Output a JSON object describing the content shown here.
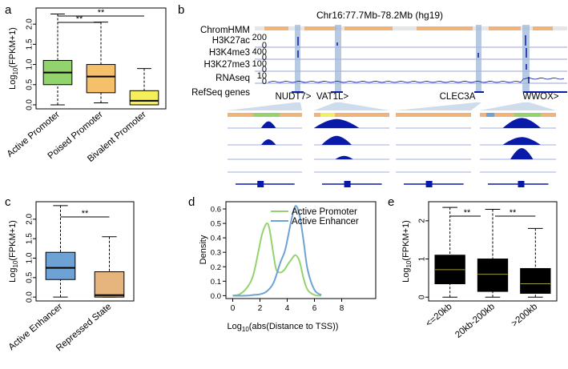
{
  "panels": {
    "a": "a",
    "b": "b",
    "c": "c",
    "d": "d",
    "e": "e"
  },
  "colors": {
    "active": "#92d36e",
    "poised": "#f6bf6a",
    "bivalent": "#f4ef5a",
    "enhancer": "#6ea2d4",
    "repressed": "#e6b57d",
    "track": "#0a1aa8",
    "highlight": "#9fb8d8",
    "chrom_orange": "#f0b47a"
  },
  "chart_data": [
    {
      "panel": "a",
      "type": "box",
      "categories": [
        "Active Promoter",
        "Poised Promoter",
        "Bivalent Promoter"
      ],
      "ylabel": "Log10(FPKM+1)",
      "ylim": [
        -0.1,
        2.4
      ],
      "yticks": [
        0.0,
        0.5,
        1.0,
        1.5,
        2.0
      ],
      "yticklabels": [
        "0.0",
        "0.5",
        "1.0",
        "1.5",
        "2.0"
      ],
      "boxes": [
        {
          "min": 0.0,
          "q1": 0.5,
          "median": 0.8,
          "q3": 1.1,
          "max": 2.25,
          "color": "#92d36e"
        },
        {
          "min": 0.05,
          "q1": 0.3,
          "median": 0.7,
          "q3": 1.0,
          "max": 2.05,
          "color": "#f6bf6a"
        },
        {
          "min": 0.0,
          "q1": 0.0,
          "median": 0.1,
          "q3": 0.35,
          "max": 0.9,
          "color": "#f4ef5a"
        }
      ],
      "significance": [
        {
          "from": 0,
          "to": 1,
          "label": "**"
        },
        {
          "from": 0,
          "to": 2,
          "label": "**"
        }
      ]
    },
    {
      "panel": "b",
      "type": "genome-tracks",
      "title": "Chr16:77.7Mb-78.2Mb (hg19)",
      "tracks": [
        {
          "label": "ChromHMM",
          "scale": ""
        },
        {
          "label": "H3K27ac",
          "scale": "200"
        },
        {
          "label": "H3K4me3",
          "scale": "400"
        },
        {
          "label": "H3K27me3",
          "scale": "100"
        },
        {
          "label": "RNAseq",
          "scale": "10"
        },
        {
          "label": "RefSeq genes",
          "scale": ""
        }
      ],
      "tick0": "0",
      "genes": [
        "NUDT7>",
        "VAT1L>",
        "CLEC3A",
        "WWOX>"
      ]
    },
    {
      "panel": "c",
      "type": "box",
      "categories": [
        "Active Enhancer",
        "Repressed State"
      ],
      "ylabel": "Log10(FPKM+1)",
      "ylim": [
        -0.1,
        2.45
      ],
      "yticks": [
        0.0,
        0.5,
        1.0,
        1.5,
        2.0
      ],
      "yticklabels": [
        "0.0",
        "0.5",
        "1.0",
        "1.5",
        "2.0"
      ],
      "boxes": [
        {
          "min": 0.0,
          "q1": 0.45,
          "median": 0.75,
          "q3": 1.15,
          "max": 2.35,
          "color": "#6ea2d4"
        },
        {
          "min": 0.0,
          "q1": 0.0,
          "median": 0.05,
          "q3": 0.65,
          "max": 1.55,
          "color": "#e6b57d"
        }
      ],
      "significance": [
        {
          "from": 0,
          "to": 1,
          "label": "**"
        }
      ]
    },
    {
      "panel": "d",
      "type": "line",
      "xlabel": "Log10(abs(Distance to TSS))",
      "ylabel": "Density",
      "xlim": [
        -0.5,
        10.5
      ],
      "ylim": [
        -0.02,
        0.65
      ],
      "xticks": [
        0,
        2,
        4,
        6,
        8
      ],
      "yticks": [
        0.0,
        0.1,
        0.2,
        0.3,
        0.4,
        0.5,
        0.6
      ],
      "yticklabels": [
        "0.0",
        "0.1",
        "0.2",
        "0.3",
        "0.4",
        "0.5",
        "0.6"
      ],
      "legend": "top-right",
      "series": [
        {
          "name": "Active Promoter",
          "color": "#92d36e",
          "x": [
            0,
            0.5,
            1,
            1.5,
            2,
            2.2,
            2.5,
            2.7,
            3,
            3.2,
            3.5,
            3.8,
            4,
            4.3,
            4.6,
            4.9,
            5.2,
            5.5,
            6,
            6.5
          ],
          "y": [
            0,
            0.01,
            0.05,
            0.14,
            0.36,
            0.44,
            0.5,
            0.46,
            0.28,
            0.18,
            0.16,
            0.18,
            0.21,
            0.25,
            0.28,
            0.24,
            0.12,
            0.04,
            0.005,
            0
          ]
        },
        {
          "name": "Active Enhancer",
          "color": "#6ea2d4",
          "x": [
            0,
            1,
            1.5,
            2,
            2.5,
            3,
            3.5,
            3.8,
            4,
            4.3,
            4.6,
            4.9,
            5.2,
            5.5,
            6,
            6.5
          ],
          "y": [
            0,
            0.0,
            0.005,
            0.01,
            0.03,
            0.09,
            0.23,
            0.3,
            0.38,
            0.52,
            0.62,
            0.56,
            0.38,
            0.18,
            0.04,
            0.005
          ]
        }
      ]
    },
    {
      "panel": "e",
      "type": "box",
      "categories": [
        "<=20kb",
        "20kb-200kb",
        ">200kb"
      ],
      "ylabel": "Log10(FPKM+1)",
      "ylim": [
        -0.1,
        2.5
      ],
      "yticks": [
        0,
        1,
        2
      ],
      "yticklabels": [
        "0",
        "1",
        "2"
      ],
      "boxes": [
        {
          "min": 0.0,
          "q1": 0.35,
          "median": 0.72,
          "q3": 1.1,
          "max": 2.35,
          "color": "#000000"
        },
        {
          "min": 0.0,
          "q1": 0.15,
          "median": 0.6,
          "q3": 1.0,
          "max": 2.3,
          "color": "#000000"
        },
        {
          "min": 0.0,
          "q1": 0.1,
          "median": 0.35,
          "q3": 0.75,
          "max": 1.8,
          "color": "#000000"
        }
      ],
      "significance": [
        {
          "from": 0,
          "to": 1,
          "label": "**"
        },
        {
          "from": 1,
          "to": 2,
          "label": "**"
        }
      ]
    }
  ]
}
